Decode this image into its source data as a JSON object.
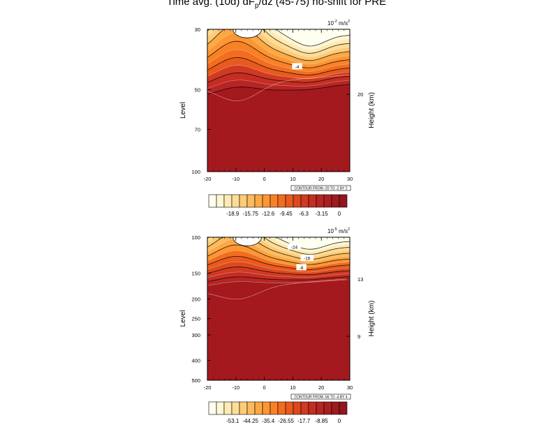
{
  "figure": {
    "title": "Time avg. (10d) dF",
    "title_sub": "p",
    "title_rest": "/dz (45-75) no-shift for PRE"
  },
  "chart_data": [
    {
      "type": "heatmap",
      "units_base": "10",
      "units_exp": "-2",
      "units_rest": " m/s",
      "units_exp2": "2",
      "ylabel": "Level",
      "y2label": "Height (km)",
      "xlim": [
        -20,
        30
      ],
      "x_ticks": [
        -20,
        -10,
        0,
        10,
        20,
        30
      ],
      "y_scale": "log",
      "ylim": [
        100,
        30
      ],
      "y_ticks": [
        30,
        50,
        70,
        100
      ],
      "y2_ticks": [
        {
          "value": "20",
          "level": 52
        }
      ],
      "contour_info": "CONTOUR FROM -20 TO -2 BY 2",
      "contour_labels": [
        {
          "text": "-4",
          "x": 11.5,
          "level": 41
        }
      ],
      "colorbar_labels": [
        "-18.9",
        "-15.75",
        "-12.6",
        "-9.45",
        "-6.3",
        "-3.15",
        "0"
      ],
      "colorbar_colors": [
        "#fffff0",
        "#fff6d2",
        "#ffeab4",
        "#ffdc96",
        "#fecb78",
        "#febb5c",
        "#fda844",
        "#fc9533",
        "#f88126",
        "#f26d1f",
        "#e85a1e",
        "#dd481f",
        "#d03922",
        "#c42d24",
        "#b62524",
        "#aa1f22",
        "#9e1a20",
        "#92161d"
      ],
      "field_color_dark": "#a3191e",
      "accent_color": "#fc8a2d"
    },
    {
      "type": "heatmap",
      "units_base": "10",
      "units_exp": "-5",
      "units_rest": " m/s",
      "units_exp2": "2",
      "ylabel": "Level",
      "y2label": "Height (km)",
      "xlim": [
        -20,
        30
      ],
      "x_ticks": [
        -20,
        -10,
        0,
        10,
        20,
        30
      ],
      "y_scale": "log",
      "ylim": [
        500,
        100
      ],
      "y_ticks": [
        100,
        150,
        200,
        250,
        300,
        400,
        500
      ],
      "y2_ticks": [
        {
          "value": "13",
          "level": 160
        },
        {
          "value": "9",
          "level": 305
        }
      ],
      "contour_info": "CONTOUR FROM -56 TO -4 BY 4",
      "contour_labels": [
        {
          "text": "-24",
          "x": 10.5,
          "level": 111
        },
        {
          "text": "-16",
          "x": 15,
          "level": 126
        },
        {
          "text": "-8",
          "x": 13,
          "level": 140
        }
      ],
      "colorbar_labels": [
        "-53.1",
        "-44.25",
        "-35.4",
        "-26.55",
        "-17.7",
        "-8.85",
        "0"
      ],
      "colorbar_colors": [
        "#fffff0",
        "#fff6d2",
        "#ffeab4",
        "#ffdc96",
        "#fecb78",
        "#febb5c",
        "#fda844",
        "#fc9533",
        "#f88126",
        "#f26d1f",
        "#e85a1e",
        "#dd481f",
        "#d03922",
        "#c42d24",
        "#b62524",
        "#aa1f22",
        "#9e1a20",
        "#92161d"
      ],
      "field_color_dark": "#a3191e",
      "accent_color": "#fc8a2d"
    }
  ]
}
